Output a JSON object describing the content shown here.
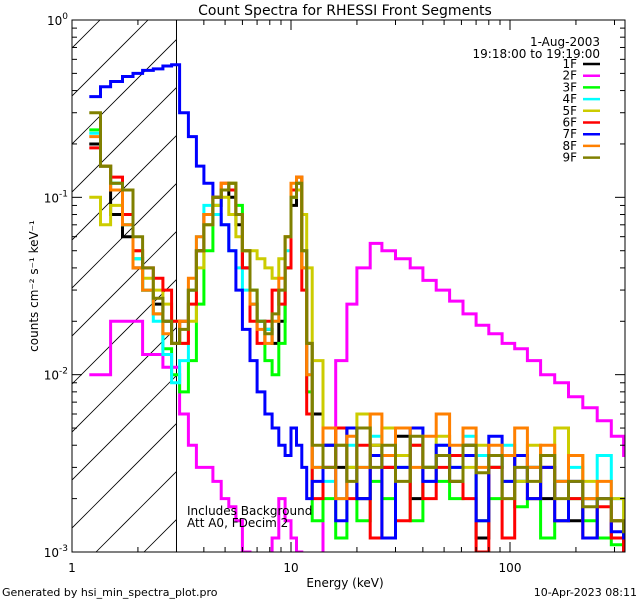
{
  "chart_data": {
    "type": "line",
    "title": "Count Spectra for RHESSI Front Segments",
    "xlabel": "Energy (keV)",
    "ylabel": "counts cm⁻² s⁻¹ keV⁻¹",
    "xscale": "log",
    "yscale": "log",
    "xlim": [
      1,
      335
    ],
    "ylim": [
      0.001,
      1
    ],
    "x_tick_labels": [
      "1",
      "10",
      "100"
    ],
    "x_tick_values": [
      1,
      10,
      100
    ],
    "y_tick_labels": [
      {
        "base": "10",
        "exp": "0",
        "value": 1
      },
      {
        "base": "10",
        "exp": "-1",
        "value": 0.1
      },
      {
        "base": "10",
        "exp": "-2",
        "value": 0.01
      },
      {
        "base": "10",
        "exp": "-3",
        "value": 0.001
      }
    ],
    "legend_placement": "top-right",
    "date": "1-Aug-2003",
    "time_range": "19:18:00 to 19:19:00",
    "annotations": [
      "Includes Background",
      "Att A0, FDecim 2"
    ],
    "hatched_region_keV": [
      1,
      3
    ],
    "energy": [
      1.2,
      1.35,
      1.5,
      1.7,
      1.9,
      2.1,
      2.35,
      2.6,
      2.85,
      3.1,
      3.4,
      3.7,
      4.0,
      4.4,
      4.8,
      5.2,
      5.6,
      6.0,
      6.5,
      7.0,
      7.6,
      8.2,
      8.8,
      9.4,
      10.0,
      10.6,
      11.2,
      11.8,
      12.5,
      14,
      16,
      18,
      20,
      23,
      26,
      30,
      35,
      40,
      46,
      53,
      61,
      70,
      80,
      92,
      105,
      120,
      138,
      160,
      185,
      215,
      250,
      290,
      330
    ],
    "series": [
      {
        "name": "1F",
        "color": "#000000",
        "values": [
          0.2,
          0.15,
          0.08,
          0.06,
          0.04,
          0.03,
          0.025,
          0.02,
          0.015,
          0.02,
          0.03,
          0.05,
          0.08,
          0.1,
          0.11,
          0.1,
          0.07,
          0.04,
          0.025,
          0.02,
          0.018,
          0.015,
          0.02,
          0.04,
          0.09,
          0.12,
          0.05,
          0.015,
          0.006,
          0.004,
          0.003,
          0.005,
          0.002,
          0.004,
          0.003,
          0.0045,
          0.002,
          0.003,
          0.0035,
          0.0025,
          0.004,
          0.0012,
          0.003,
          0.0035,
          0.0025,
          0.003,
          0.002,
          0.0025,
          0.0015,
          0.002,
          0.0012,
          0.0015,
          0.001
        ]
      },
      {
        "name": "2F",
        "color": "#ff00ff",
        "values": [
          0.01,
          0.01,
          0.02,
          0.02,
          0.02,
          0.013,
          0.013,
          0.011,
          0.011,
          0.006,
          0.004,
          0.003,
          0.003,
          0.0025,
          0.002,
          0.0018,
          0.0015,
          0.001,
          0.0008,
          0.0009,
          0.0009,
          0.0012,
          0.002,
          0.0015,
          0.0012,
          0.001,
          0.0008,
          0.0008,
          0.0009,
          0.003,
          0.012,
          0.025,
          0.04,
          0.055,
          0.05,
          0.045,
          0.04,
          0.034,
          0.03,
          0.026,
          0.022,
          0.019,
          0.017,
          0.015,
          0.014,
          0.012,
          0.01,
          0.009,
          0.0075,
          0.0065,
          0.0055,
          0.0045,
          0.0035
        ]
      },
      {
        "name": "3F",
        "color": "#00ff00",
        "values": [
          0.24,
          0.15,
          0.12,
          0.07,
          0.045,
          0.03,
          0.022,
          0.014,
          0.01,
          0.008,
          0.012,
          0.025,
          0.05,
          0.09,
          0.11,
          0.12,
          0.09,
          0.05,
          0.03,
          0.02,
          0.012,
          0.01,
          0.015,
          0.04,
          0.1,
          0.13,
          0.04,
          0.008,
          0.0015,
          0.002,
          0.0012,
          0.003,
          0.0015,
          0.0025,
          0.002,
          0.0035,
          0.0015,
          0.003,
          0.0025,
          0.002,
          0.0035,
          0.0015,
          0.002,
          0.0025,
          0.0018,
          0.002,
          0.0012,
          0.0015,
          0.002,
          0.0015,
          0.0012,
          0.0011,
          0.0014
        ]
      },
      {
        "name": "4F",
        "color": "#00ffff",
        "values": [
          0.23,
          0.15,
          0.12,
          0.07,
          0.045,
          0.03,
          0.02,
          0.013,
          0.009,
          0.012,
          0.03,
          0.06,
          0.09,
          0.08,
          0.07,
          0.05,
          0.04,
          0.03,
          0.025,
          0.02,
          0.018,
          0.02,
          0.03,
          0.05,
          0.1,
          0.12,
          0.05,
          0.01,
          0.003,
          0.0025,
          0.002,
          0.004,
          0.003,
          0.0045,
          0.0035,
          0.003,
          0.005,
          0.0025,
          0.004,
          0.003,
          0.0045,
          0.0035,
          0.003,
          0.004,
          0.0025,
          0.003,
          0.0035,
          0.0025,
          0.003,
          0.002,
          0.0035,
          0.002,
          0.0015
        ]
      },
      {
        "name": "5F",
        "color": "#cccc00",
        "values": [
          0.1,
          0.07,
          0.09,
          0.08,
          0.05,
          0.035,
          0.03,
          0.025,
          0.02,
          0.015,
          0.02,
          0.04,
          0.07,
          0.09,
          0.1,
          0.08,
          0.06,
          0.05,
          0.05,
          0.045,
          0.04,
          0.035,
          0.045,
          0.06,
          0.1,
          0.11,
          0.08,
          0.04,
          0.012,
          0.005,
          0.004,
          0.003,
          0.006,
          0.004,
          0.005,
          0.0035,
          0.004,
          0.003,
          0.0045,
          0.0035,
          0.003,
          0.004,
          0.003,
          0.0035,
          0.0025,
          0.004,
          0.003,
          0.005,
          0.0035,
          0.0025,
          0.002,
          0.002,
          0.0015
        ]
      },
      {
        "name": "6F",
        "color": "#ff0000",
        "values": [
          0.19,
          0.15,
          0.13,
          0.08,
          0.05,
          0.04,
          0.035,
          0.03,
          0.02,
          0.015,
          0.025,
          0.05,
          0.08,
          0.1,
          0.12,
          0.11,
          0.08,
          0.04,
          0.02,
          0.015,
          0.02,
          0.03,
          0.025,
          0.04,
          0.11,
          0.13,
          0.03,
          0.006,
          0.002,
          0.003,
          0.005,
          0.002,
          0.004,
          0.0012,
          0.003,
          0.0015,
          0.004,
          0.002,
          0.003,
          0.0035,
          0.002,
          0.001,
          0.003,
          0.0012,
          0.0035,
          0.002,
          0.003,
          0.0015,
          0.002,
          0.0012,
          0.0018,
          0.0012,
          0.001
        ]
      },
      {
        "name": "7F",
        "color": "#0000ff",
        "values": [
          0.37,
          0.42,
          0.45,
          0.48,
          0.5,
          0.52,
          0.53,
          0.55,
          0.56,
          0.3,
          0.22,
          0.15,
          0.12,
          0.1,
          0.07,
          0.05,
          0.03,
          0.018,
          0.012,
          0.008,
          0.006,
          0.005,
          0.004,
          0.0035,
          0.005,
          0.004,
          0.003,
          0.002,
          0.0025,
          0.004,
          0.0015,
          0.005,
          0.002,
          0.0035,
          0.0012,
          0.003,
          0.005,
          0.0025,
          0.004,
          0.003,
          0.0035,
          0.0015,
          0.0045,
          0.0025,
          0.0035,
          0.002,
          0.003,
          0.0015,
          0.0025,
          0.0012,
          0.002,
          0.0013,
          0.0012
        ]
      },
      {
        "name": "8F",
        "color": "#ff8000",
        "values": [
          0.22,
          0.15,
          0.11,
          0.07,
          0.04,
          0.03,
          0.022,
          0.017,
          0.015,
          0.02,
          0.035,
          0.06,
          0.08,
          0.1,
          0.12,
          0.12,
          0.08,
          0.05,
          0.025,
          0.018,
          0.015,
          0.02,
          0.035,
          0.06,
          0.12,
          0.13,
          0.04,
          0.01,
          0.003,
          0.005,
          0.002,
          0.0045,
          0.003,
          0.006,
          0.0035,
          0.005,
          0.003,
          0.0045,
          0.006,
          0.004,
          0.005,
          0.003,
          0.004,
          0.0035,
          0.005,
          0.003,
          0.004,
          0.0025,
          0.0035,
          0.002,
          0.0025,
          0.0015,
          0.0015
        ]
      },
      {
        "name": "9F",
        "color": "#808000",
        "values": [
          0.3,
          0.15,
          0.12,
          0.11,
          0.06,
          0.04,
          0.027,
          0.02,
          0.015,
          0.018,
          0.03,
          0.05,
          0.07,
          0.1,
          0.11,
          0.12,
          0.08,
          0.05,
          0.03,
          0.02,
          0.017,
          0.022,
          0.03,
          0.06,
          0.1,
          0.12,
          0.05,
          0.015,
          0.004,
          0.003,
          0.004,
          0.0025,
          0.005,
          0.003,
          0.004,
          0.0025,
          0.0045,
          0.003,
          0.0035,
          0.0025,
          0.004,
          0.0028,
          0.0035,
          0.002,
          0.003,
          0.0025,
          0.0035,
          0.002,
          0.0025,
          0.0018,
          0.002,
          0.0015,
          0.0013
        ]
      }
    ]
  },
  "footer": {
    "generated_by": "Generated by hsi_min_spectra_plot.pro",
    "timestamp": "10-Apr-2023 08:11"
  }
}
